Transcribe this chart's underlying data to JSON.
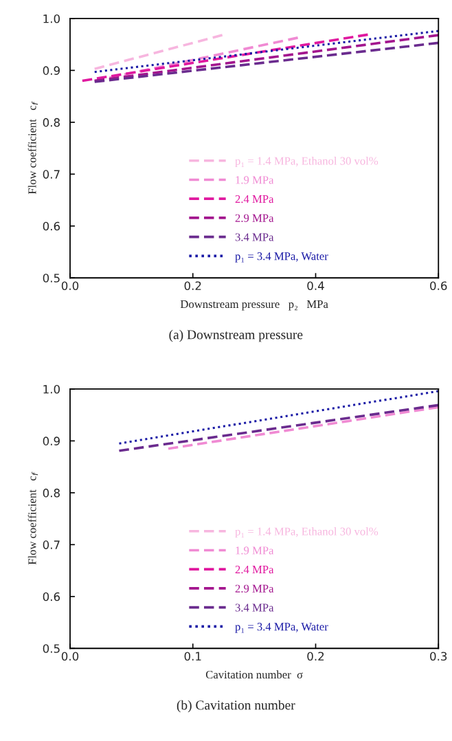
{
  "chart_data": [
    {
      "type": "line",
      "xlabel": "Downstream pressure   p₂   MPa",
      "ylabel": "Flow coefficient   c$_{f}$",
      "annotations": [
        "(a) Downstream pressure"
      ],
      "xlim": [
        0.0,
        0.6
      ],
      "xticks": [
        {
          "value": 0.0,
          "label": "0.0"
        },
        0.2,
        0.4,
        0.6
      ],
      "ylim": [
        0.5,
        1.0
      ],
      "yticks": [
        0.5,
        0.6,
        0.7,
        0.8,
        0.9,
        {
          "value": 1.0,
          "label": "1.0"
        }
      ],
      "grid": false,
      "legend": "bottom",
      "marker": "none",
      "series": [
        {
          "name": "p₁ = 1.4 MPa, Ethanol 30 vol%",
          "color": "#f7b6df",
          "line_style": "dashed",
          "x": [
            0.04,
            0.248
          ],
          "values": [
            0.903,
            0.968
          ]
        },
        {
          "name": "1.9 MPa",
          "color": "#f08ad3",
          "line_style": "dashed",
          "x": [
            0.04,
            0.371
          ],
          "values": [
            0.88,
            0.963
          ]
        },
        {
          "name": "2.4 MPa",
          "color": "#e0189f",
          "line_style": "dashed",
          "x": [
            0.02,
            0.485
          ],
          "values": [
            0.88,
            0.969
          ]
        },
        {
          "name": "2.9 MPa",
          "color": "#a3158e",
          "line_style": "dashed",
          "x": [
            0.04,
            0.6
          ],
          "values": [
            0.88,
            0.968
          ]
        },
        {
          "name": "3.4 MPa",
          "color": "#6a2b8e",
          "line_style": "dashed",
          "x": [
            0.04,
            0.6
          ],
          "values": [
            0.878,
            0.953
          ]
        },
        {
          "name": "p₁ = 3.4 MPa, Water",
          "color": "#1a1aa6",
          "line_style": "dotted",
          "x": [
            0.04,
            0.6
          ],
          "values": [
            0.897,
            0.976
          ]
        }
      ]
    },
    {
      "type": "line",
      "xlabel": "Cavitation number  σ",
      "ylabel": "Flow coefficient   c$_{f}$",
      "annotations": [
        "(b) Cavitation number"
      ],
      "xlim": [
        0.0,
        0.3
      ],
      "xticks": [
        {
          "value": 0.0,
          "label": "0.0"
        },
        0.1,
        0.2,
        0.3
      ],
      "ylim": [
        0.5,
        1.0
      ],
      "yticks": [
        0.5,
        0.6,
        0.7,
        0.8,
        0.9,
        {
          "value": 1.0,
          "label": "1.0"
        }
      ],
      "grid": false,
      "legend": "bottom",
      "marker": "none",
      "series": [
        {
          "name": "p₁ = 1.4 MPa, Ethanol 30 vol%",
          "color": "#f7b6df",
          "line_style": "dashed"
        },
        {
          "name": "1.9 MPa",
          "color": "#f08ad3",
          "line_style": "dashed",
          "x": [
            0.08,
            0.3
          ],
          "values": [
            0.885,
            0.965
          ]
        },
        {
          "name": "2.4 MPa",
          "color": "#e0189f",
          "line_style": "dashed"
        },
        {
          "name": "2.9 MPa",
          "color": "#a3158e",
          "line_style": "dashed"
        },
        {
          "name": "3.4 MPa",
          "color": "#6a2b8e",
          "line_style": "dashed",
          "x": [
            0.04,
            0.3
          ],
          "values": [
            0.881,
            0.969
          ]
        },
        {
          "name": "p₁ = 3.4 MPa, Water",
          "color": "#1a1aa6",
          "line_style": "dotted",
          "x": [
            0.04,
            0.3
          ],
          "values": [
            0.895,
            0.996
          ]
        }
      ]
    }
  ]
}
